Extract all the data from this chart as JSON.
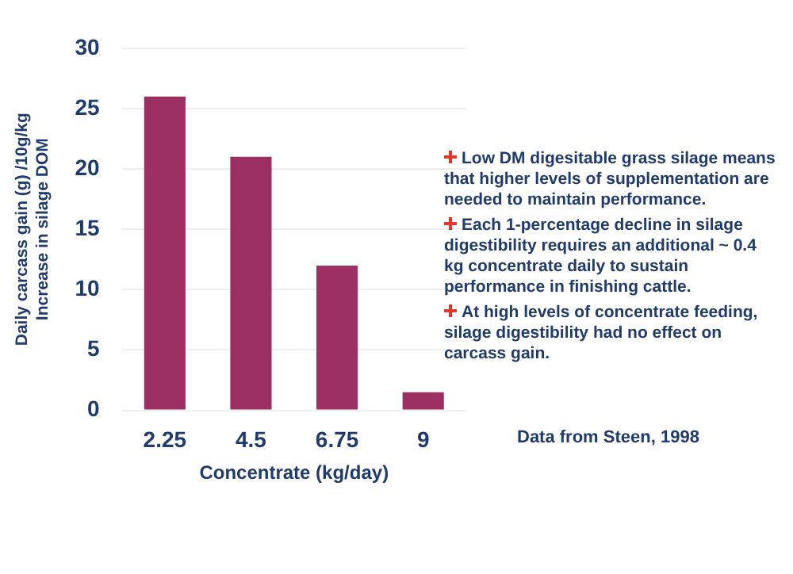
{
  "chart_data": {
    "type": "bar",
    "xlabel": "Concentrate (kg/day)",
    "ylabel": "Daily carcass gain (g) /10g/kg Increase in silage DOM",
    "categories": [
      "2.25",
      "4.5",
      "6.75",
      "9"
    ],
    "values": [
      26,
      21,
      12,
      1.5
    ],
    "color": "#9c2f62",
    "ylim": [
      0,
      30
    ],
    "yticks": [
      0,
      5,
      10,
      15,
      20,
      25,
      30
    ],
    "grid": "y",
    "annotations": [
      "Low DM digesitable grass silage means that higher levels of supplementation are needed to maintain performance.",
      "Each 1-percentage decline in silage digestibility requires an additional ~ 0.4 kg concentrate daily to sustain performance in finishing cattle.",
      "At high levels of concentrate feeding, silage digestibility had no effect on carcass gain.",
      "Data from Steen, 1998"
    ]
  }
}
